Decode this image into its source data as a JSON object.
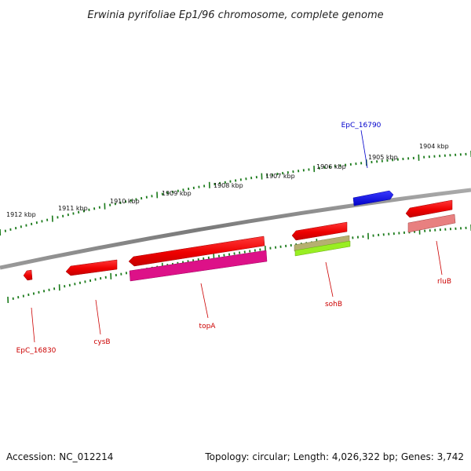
{
  "title": "Erwinia pyrifoliae Ep1/96 chromosome, complete genome",
  "footer": {
    "accession": "Accession: NC_012214",
    "summary": "Topology: circular; Length: 4,026,322 bp; Genes: 3,742"
  },
  "colors": {
    "backbone": "#808080",
    "tick": "#1a7a1a",
    "forward_label": "#0000cc",
    "reverse_label": "#cc0000"
  },
  "ruler": [
    {
      "label": "1912 kbp"
    },
    {
      "label": "1911 kbp"
    },
    {
      "label": "1910 kbp"
    },
    {
      "label": "1909 kbp"
    },
    {
      "label": "1908 kbp"
    },
    {
      "label": "1907 kbp"
    },
    {
      "label": "1906 kbp"
    },
    {
      "label": "1905 kbp"
    },
    {
      "label": "1904 kbp"
    }
  ],
  "genes": [
    {
      "name": "EpC_16790",
      "strand": "forward",
      "color": "#0000ee"
    },
    {
      "name": "rluB",
      "strand": "reverse",
      "color": "#ee0000"
    },
    {
      "name": "sohB",
      "strand": "reverse",
      "color": "#ee0000"
    },
    {
      "name": "topA",
      "strand": "reverse",
      "color": "#ee0000"
    },
    {
      "name": "cysB",
      "strand": "reverse",
      "color": "#ee0000"
    },
    {
      "name": "EpC_16830",
      "strand": "reverse",
      "color": "#ee0000"
    }
  ],
  "features": [
    {
      "kind": "rRNA-like",
      "color": "#e88080"
    },
    {
      "kind": "misc",
      "color": "#b5b070"
    },
    {
      "kind": "misc",
      "color": "#99ee22"
    },
    {
      "kind": "CDS",
      "color": "#dd1188"
    }
  ]
}
